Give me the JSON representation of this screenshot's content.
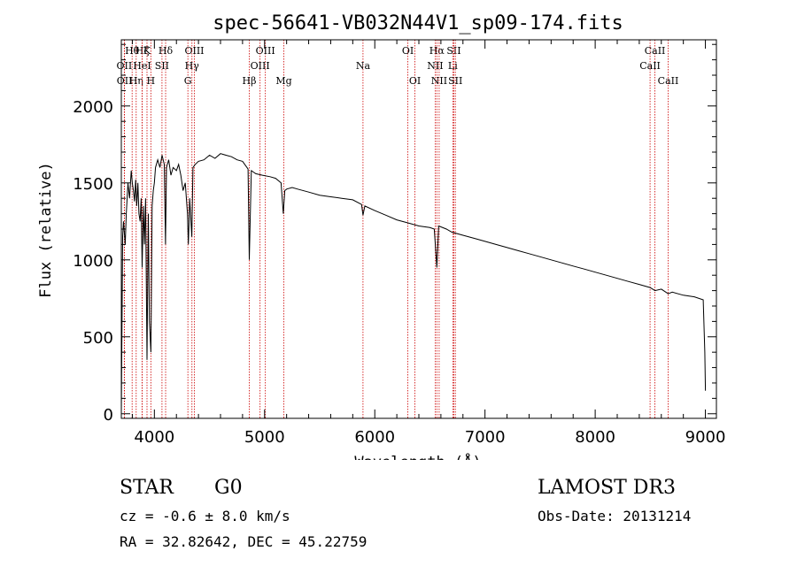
{
  "chart_data": {
    "type": "line",
    "title": "spec-56641-VB032N44V1_sp09-174.fits",
    "xlabel": "Wavelength (Å)",
    "ylabel": "Flux (relative)",
    "xlim": [
      3700,
      9100
    ],
    "ylim": [
      -30,
      2430
    ],
    "xticks": [
      4000,
      5000,
      6000,
      7000,
      8000,
      9000
    ],
    "yticks": [
      0,
      500,
      1000,
      1500,
      2000
    ],
    "series": [
      {
        "name": "spectrum",
        "x": [
          3700,
          3712,
          3720,
          3735,
          3745,
          3760,
          3775,
          3790,
          3800,
          3810,
          3820,
          3830,
          3840,
          3850,
          3860,
          3870,
          3880,
          3889,
          3900,
          3910,
          3920,
          3933,
          3945,
          3955,
          3968,
          3980,
          3990,
          4000,
          4010,
          4030,
          4050,
          4070,
          4090,
          4101,
          4110,
          4130,
          4150,
          4170,
          4200,
          4220,
          4240,
          4260,
          4280,
          4300,
          4308,
          4320,
          4340,
          4350,
          4370,
          4400,
          4450,
          4500,
          4550,
          4600,
          4650,
          4700,
          4750,
          4800,
          4850,
          4861,
          4880,
          4920,
          4980,
          5050,
          5100,
          5150,
          5170,
          5183,
          5200,
          5250,
          5300,
          5400,
          5500,
          5600,
          5700,
          5800,
          5880,
          5893,
          5910,
          6000,
          6100,
          6200,
          6300,
          6400,
          6500,
          6540,
          6563,
          6580,
          6650,
          6700,
          6800,
          6900,
          7000,
          7100,
          7200,
          7300,
          7400,
          7500,
          7600,
          7700,
          7800,
          7900,
          8000,
          8100,
          8200,
          8300,
          8400,
          8498,
          8542,
          8600,
          8662,
          8700,
          8800,
          8900,
          8980,
          8995,
          9000
        ],
        "y": [
          0,
          1150,
          1250,
          1100,
          1300,
          1500,
          1400,
          1580,
          1500,
          1450,
          1380,
          1520,
          1350,
          1500,
          1300,
          1250,
          1400,
          950,
          1350,
          1100,
          1400,
          350,
          1300,
          600,
          400,
          1350,
          1450,
          1500,
          1600,
          1650,
          1600,
          1680,
          1620,
          1100,
          1600,
          1650,
          1550,
          1600,
          1580,
          1620,
          1550,
          1450,
          1500,
          1300,
          1100,
          1400,
          1150,
          1600,
          1620,
          1640,
          1650,
          1680,
          1660,
          1690,
          1680,
          1670,
          1650,
          1640,
          1590,
          1000,
          1580,
          1560,
          1550,
          1540,
          1530,
          1500,
          1300,
          1450,
          1460,
          1470,
          1460,
          1440,
          1420,
          1410,
          1400,
          1390,
          1360,
          1290,
          1350,
          1320,
          1290,
          1260,
          1240,
          1220,
          1210,
          1200,
          950,
          1220,
          1200,
          1180,
          1160,
          1140,
          1120,
          1100,
          1080,
          1060,
          1040,
          1020,
          1000,
          980,
          960,
          940,
          920,
          900,
          880,
          860,
          840,
          820,
          800,
          810,
          780,
          790,
          770,
          760,
          740,
          400,
          150
        ]
      }
    ],
    "lines": [
      {
        "label": "Hθ",
        "x": 3798,
        "row": 1
      },
      {
        "label": "OII",
        "x": 3727,
        "row": 2
      },
      {
        "label": "OII",
        "x": 3729,
        "row": 3
      },
      {
        "label": "Hη",
        "x": 3835,
        "row": 3
      },
      {
        "label": "Hζ",
        "x": 3889,
        "row": 1
      },
      {
        "label": "HeI",
        "x": 3889,
        "row": 2
      },
      {
        "label": "K",
        "x": 3933,
        "row": 1
      },
      {
        "label": "H",
        "x": 3968,
        "row": 3
      },
      {
        "label": "SII",
        "x": 4069,
        "row": 2
      },
      {
        "label": "Hδ",
        "x": 4102,
        "row": 1
      },
      {
        "label": "OIII",
        "x": 4363,
        "row": 1
      },
      {
        "label": "Hγ",
        "x": 4341,
        "row": 2
      },
      {
        "label": "G",
        "x": 4304,
        "row": 3
      },
      {
        "label": "OIII",
        "x": 5007,
        "row": 1
      },
      {
        "label": "OIII",
        "x": 4959,
        "row": 2
      },
      {
        "label": "Hβ",
        "x": 4861,
        "row": 3
      },
      {
        "label": "Mg",
        "x": 5175,
        "row": 3
      },
      {
        "label": "Na",
        "x": 5893,
        "row": 2
      },
      {
        "label": "OI",
        "x": 6300,
        "row": 1
      },
      {
        "label": "OI",
        "x": 6364,
        "row": 3
      },
      {
        "label": "Hα",
        "x": 6563,
        "row": 1
      },
      {
        "label": "NII",
        "x": 6548,
        "row": 2
      },
      {
        "label": "NII",
        "x": 6584,
        "row": 3
      },
      {
        "label": "SII",
        "x": 6717,
        "row": 1
      },
      {
        "label": "Li",
        "x": 6708,
        "row": 2
      },
      {
        "label": "SII",
        "x": 6731,
        "row": 3
      },
      {
        "label": "CaII",
        "x": 8542,
        "row": 1
      },
      {
        "label": "CaII",
        "x": 8498,
        "row": 2
      },
      {
        "label": "CaII",
        "x": 8662,
        "row": 3
      }
    ]
  },
  "info": {
    "class": "STAR",
    "subclass": "G0",
    "survey": "LAMOST DR3",
    "cz": "cz = -0.6 ± 8.0 km/s",
    "obs_date": "Obs-Date: 20131214",
    "radec": "RA =  32.82642, DEC =  45.22759"
  }
}
